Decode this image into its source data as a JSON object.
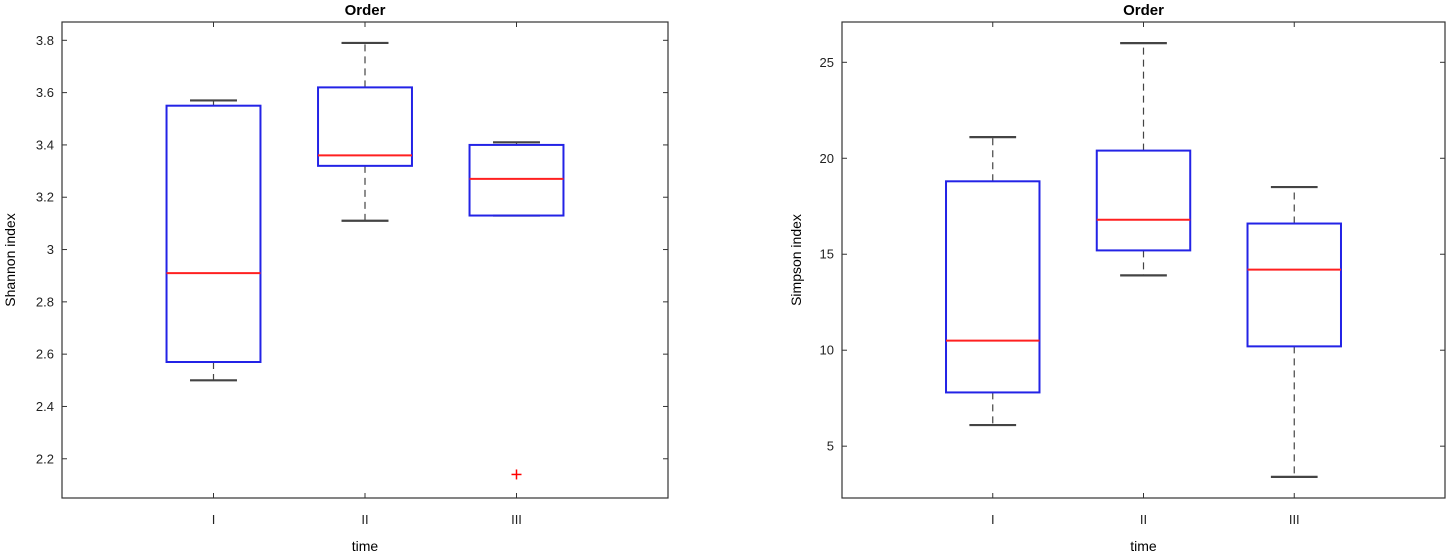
{
  "chart_data": [
    {
      "type": "box",
      "title": "Order",
      "xlabel": "time",
      "ylabel": "Shannon index",
      "categories": [
        "I",
        "II",
        "III"
      ],
      "ylim": [
        2.05,
        3.87
      ],
      "yticks": [
        "2.2",
        "2.4",
        "2.6",
        "2.8",
        "3",
        "3.2",
        "3.4",
        "3.6",
        "3.8"
      ],
      "boxes": [
        {
          "category": "I",
          "whisker_low": 2.5,
          "q1": 2.57,
          "median": 2.91,
          "q3": 3.55,
          "whisker_high": 3.57,
          "outliers": []
        },
        {
          "category": "II",
          "whisker_low": 3.11,
          "q1": 3.32,
          "median": 3.36,
          "q3": 3.62,
          "whisker_high": 3.79,
          "outliers": []
        },
        {
          "category": "III",
          "whisker_low": 3.13,
          "q1": 3.13,
          "median": 3.27,
          "q3": 3.4,
          "whisker_high": 3.41,
          "outliers": [
            2.14
          ]
        }
      ]
    },
    {
      "type": "box",
      "title": "Order",
      "xlabel": "time",
      "ylabel": "Simpson index",
      "categories": [
        "I",
        "II",
        "III"
      ],
      "ylim": [
        2.3,
        27.1
      ],
      "yticks": [
        "5",
        "10",
        "15",
        "20",
        "25"
      ],
      "boxes": [
        {
          "category": "I",
          "whisker_low": 6.1,
          "q1": 7.8,
          "median": 10.5,
          "q3": 18.8,
          "whisker_high": 21.1,
          "outliers": []
        },
        {
          "category": "II",
          "whisker_low": 13.9,
          "q1": 15.2,
          "median": 16.8,
          "q3": 20.4,
          "whisker_high": 26.0,
          "outliers": []
        },
        {
          "category": "III",
          "whisker_low": 3.4,
          "q1": 10.2,
          "median": 14.2,
          "q3": 16.6,
          "whisker_high": 18.5,
          "outliers": []
        }
      ]
    }
  ],
  "colors": {
    "box": "#2323e6",
    "median": "#ff2020",
    "whisker": "#444444",
    "outlier": "#ff0000",
    "axes": "#333333"
  }
}
